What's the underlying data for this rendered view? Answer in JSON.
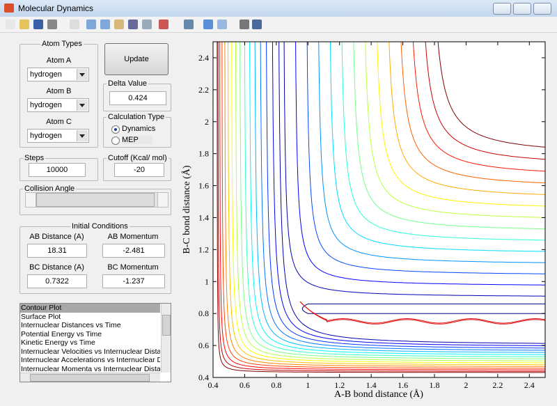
{
  "window": {
    "title": "Molecular Dynamics"
  },
  "atom_types": {
    "title": "Atom Types",
    "atoms": [
      {
        "label": "Atom A",
        "value": "hydrogen"
      },
      {
        "label": "Atom B",
        "value": "hydrogen"
      },
      {
        "label": "Atom C",
        "value": "hydrogen"
      }
    ]
  },
  "update_button": "Update",
  "delta_value": {
    "label": "Delta Value",
    "value": "0.424"
  },
  "calculation_type": {
    "label": "Calculation Type",
    "options": [
      "Dynamics",
      "MEP"
    ],
    "selected": 0
  },
  "steps": {
    "label": "Steps",
    "value": "10000"
  },
  "cutoff": {
    "label": "Cutoff (Kcal/ mol)",
    "value": "-20"
  },
  "collision_angle": {
    "label": "Collision Angle"
  },
  "initial_conditions": {
    "title": "Initial Conditions",
    "fields": [
      {
        "label": "AB Distance (A)",
        "value": "18.31"
      },
      {
        "label": "AB Momentum",
        "value": "-2.481"
      },
      {
        "label": "BC Distance (A)",
        "value": "0.7322"
      },
      {
        "label": "BC Momentum",
        "value": "-1.237"
      }
    ]
  },
  "plot_list": {
    "items": [
      "Contour Plot",
      "Surface Plot",
      "Internuclear Distances vs Time",
      "Potential Energy vs Time",
      "Kinetic Energy vs Time",
      "Internuclear Velocities vs Internuclear Distance",
      "Internuclear Accelerations vs Internuclear Dista",
      "Internuclear Momenta vs Internuclear Distance"
    ],
    "selected": 0
  },
  "chart_data": {
    "type": "contour",
    "xlabel": "A-B bond distance (Å)",
    "ylabel": "B-C bond distance (Å)",
    "xlim": [
      0.4,
      2.5
    ],
    "ylim": [
      0.4,
      2.5
    ],
    "xticks": [
      0.4,
      0.6,
      0.8,
      1,
      1.2,
      1.4,
      1.6,
      1.8,
      2,
      2.2,
      2.4
    ],
    "yticks": [
      0.4,
      0.6,
      0.8,
      1,
      1.2,
      1.4,
      1.6,
      1.8,
      2,
      2.2,
      2.4
    ]
  }
}
